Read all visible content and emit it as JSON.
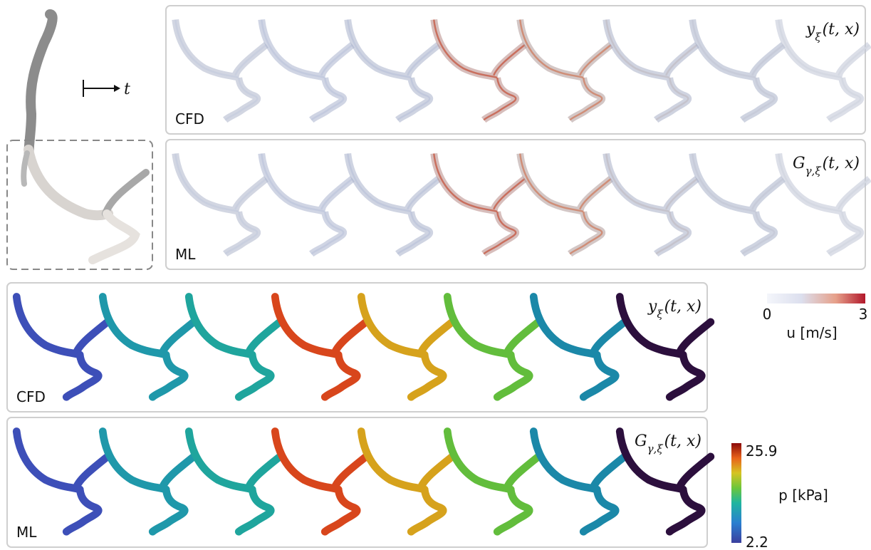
{
  "top_left": {
    "time_axis_label": "t"
  },
  "velocity_panels": [
    {
      "label": "CFD",
      "formula": {
        "base": "y",
        "sub": "ξ",
        "args": "(t, x)"
      }
    },
    {
      "label": "ML",
      "formula": {
        "base": "G",
        "sub": "γ,ξ",
        "args": "(t, x)"
      }
    }
  ],
  "pressure_panels": [
    {
      "label": "CFD",
      "formula": {
        "base": "y",
        "sub": "ξ",
        "args": "(t, x)"
      }
    },
    {
      "label": "ML",
      "formula": {
        "base": "G",
        "sub": "γ,ξ",
        "args": "(t, x)"
      }
    }
  ],
  "velocity_colorbar": {
    "min": 0,
    "max": 3,
    "label": "u [m/s]"
  },
  "pressure_colorbar": {
    "min": 2.2,
    "max": 25.9,
    "label": "p [kPa]"
  }
}
